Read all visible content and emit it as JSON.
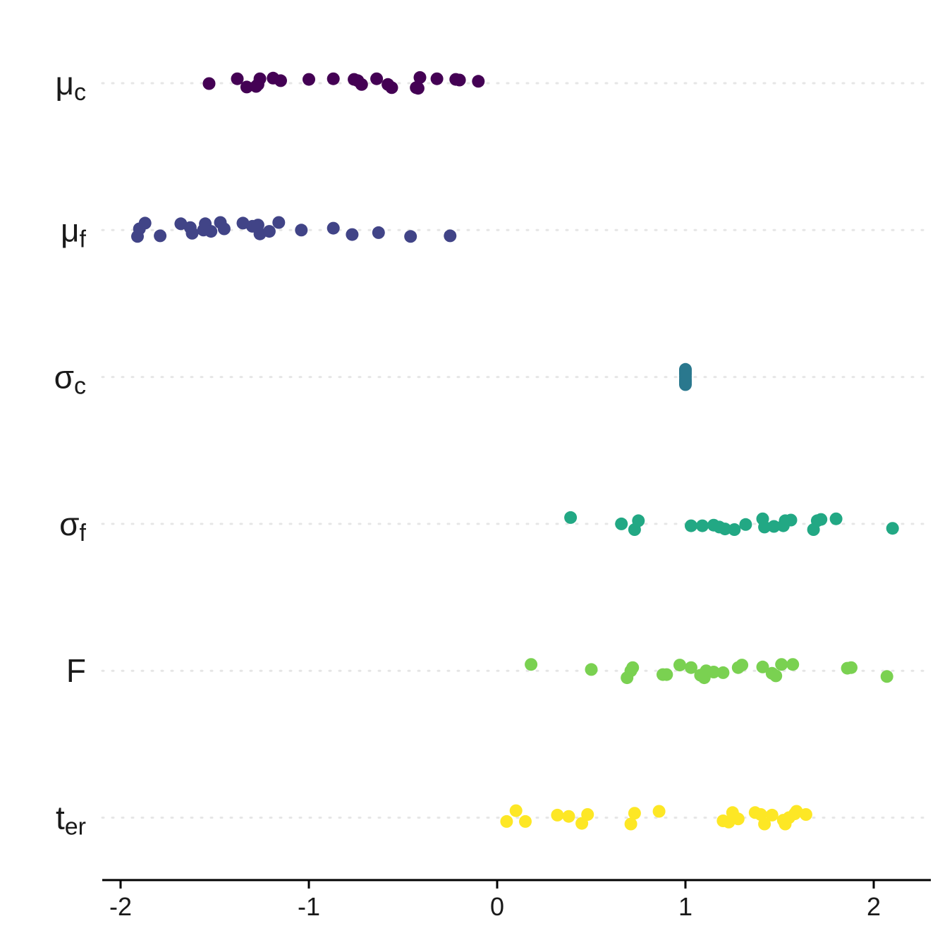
{
  "chart_data": {
    "type": "scatter",
    "title": "",
    "xlabel": "",
    "ylabel": "",
    "xlim": [
      -2.1,
      2.3
    ],
    "xticks": [
      -2,
      -1,
      0,
      1,
      2
    ],
    "xtick_labels": [
      "-2",
      "-1",
      "0",
      "1",
      "2"
    ],
    "grid": "horizontal dotted",
    "legend": "none",
    "categories": [
      {
        "base": "μ",
        "sub": "c"
      },
      {
        "base": "μ",
        "sub": "f"
      },
      {
        "base": "σ",
        "sub": "c"
      },
      {
        "base": "σ",
        "sub": "f"
      },
      {
        "base": "F",
        "sub": ""
      },
      {
        "base": "t",
        "sub": "er"
      }
    ],
    "series": [
      {
        "color": "#440154",
        "points": [
          [
            -1.53,
            0.003
          ],
          [
            -1.33,
            0.03
          ],
          [
            -1.38,
            -0.035
          ],
          [
            -1.28,
            0.025
          ],
          [
            -1.27,
            0.01
          ],
          [
            -1.26,
            -0.035
          ],
          [
            -1.19,
            -0.04
          ],
          [
            -1.15,
            -0.02
          ],
          [
            -1.0,
            -0.03
          ],
          [
            -0.87,
            -0.035
          ],
          [
            -0.76,
            -0.03
          ],
          [
            -0.74,
            -0.02
          ],
          [
            -0.72,
            0.01
          ],
          [
            -0.64,
            -0.035
          ],
          [
            -0.58,
            0.01
          ],
          [
            -0.56,
            0.035
          ],
          [
            -0.43,
            0.035
          ],
          [
            -0.42,
            0.04
          ],
          [
            -0.41,
            -0.045
          ],
          [
            -0.32,
            -0.035
          ],
          [
            -0.22,
            -0.03
          ],
          [
            -0.2,
            -0.025
          ],
          [
            -0.1,
            -0.015
          ]
        ]
      },
      {
        "color": "#414487",
        "points": [
          [
            -1.91,
            0.05
          ],
          [
            -1.9,
            -0.01
          ],
          [
            -1.87,
            -0.055
          ],
          [
            -1.79,
            0.045
          ],
          [
            -1.68,
            -0.05
          ],
          [
            -1.63,
            -0.02
          ],
          [
            -1.62,
            0.025
          ],
          [
            -1.56,
            0.0
          ],
          [
            -1.55,
            -0.05
          ],
          [
            -1.52,
            0.01
          ],
          [
            -1.47,
            -0.06
          ],
          [
            -1.45,
            -0.01
          ],
          [
            -1.35,
            -0.055
          ],
          [
            -1.3,
            -0.03
          ],
          [
            -1.27,
            -0.04
          ],
          [
            -1.26,
            0.03
          ],
          [
            -1.21,
            0.01
          ],
          [
            -1.16,
            -0.06
          ],
          [
            -1.04,
            0.0
          ],
          [
            -0.87,
            -0.015
          ],
          [
            -0.77,
            0.035
          ],
          [
            -0.63,
            0.02
          ],
          [
            -0.46,
            0.05
          ],
          [
            -0.25,
            0.045
          ]
        ]
      },
      {
        "color": "#2a788e",
        "points": [
          [
            1.0,
            0.06
          ],
          [
            1.0,
            0.04
          ],
          [
            1.0,
            0.02
          ],
          [
            1.0,
            0.0
          ],
          [
            1.0,
            -0.02
          ],
          [
            1.0,
            -0.04
          ],
          [
            1.0,
            -0.06
          ],
          [
            1.0,
            0.03
          ],
          [
            1.0,
            -0.03
          ],
          [
            1.0,
            0.05
          ],
          [
            1.0,
            -0.05
          ]
        ]
      },
      {
        "color": "#22a884",
        "points": [
          [
            0.39,
            -0.05
          ],
          [
            0.66,
            0.0
          ],
          [
            0.73,
            0.045
          ],
          [
            0.75,
            -0.025
          ],
          [
            1.03,
            0.015
          ],
          [
            1.09,
            0.015
          ],
          [
            1.15,
            0.01
          ],
          [
            1.18,
            0.025
          ],
          [
            1.21,
            0.04
          ],
          [
            1.26,
            0.045
          ],
          [
            1.32,
            0.005
          ],
          [
            1.41,
            -0.04
          ],
          [
            1.42,
            0.025
          ],
          [
            1.47,
            0.02
          ],
          [
            1.52,
            0.015
          ],
          [
            1.53,
            -0.025
          ],
          [
            1.56,
            -0.03
          ],
          [
            1.68,
            0.045
          ],
          [
            1.7,
            -0.025
          ],
          [
            1.72,
            -0.035
          ],
          [
            1.8,
            -0.04
          ],
          [
            2.1,
            0.035
          ]
        ]
      },
      {
        "color": "#7ad151",
        "points": [
          [
            0.18,
            -0.05
          ],
          [
            0.5,
            -0.01
          ],
          [
            0.69,
            0.055
          ],
          [
            0.71,
            0.0
          ],
          [
            0.72,
            -0.025
          ],
          [
            0.88,
            0.03
          ],
          [
            0.9,
            0.03
          ],
          [
            0.97,
            -0.045
          ],
          [
            1.03,
            -0.025
          ],
          [
            1.08,
            0.035
          ],
          [
            1.1,
            0.055
          ],
          [
            1.11,
            0.0
          ],
          [
            1.15,
            0.01
          ],
          [
            1.2,
            0.015
          ],
          [
            1.28,
            -0.025
          ],
          [
            1.3,
            -0.045
          ],
          [
            1.41,
            -0.03
          ],
          [
            1.46,
            0.02
          ],
          [
            1.48,
            0.04
          ],
          [
            1.51,
            -0.05
          ],
          [
            1.57,
            -0.05
          ],
          [
            1.86,
            -0.02
          ],
          [
            1.88,
            -0.025
          ],
          [
            2.07,
            0.045
          ]
        ]
      },
      {
        "color": "#fde725",
        "points": [
          [
            0.05,
            0.03
          ],
          [
            0.1,
            -0.055
          ],
          [
            0.15,
            0.03
          ],
          [
            0.32,
            -0.02
          ],
          [
            0.38,
            -0.01
          ],
          [
            0.45,
            0.045
          ],
          [
            0.48,
            -0.025
          ],
          [
            0.71,
            0.05
          ],
          [
            0.73,
            -0.035
          ],
          [
            0.86,
            -0.05
          ],
          [
            1.2,
            0.025
          ],
          [
            1.23,
            0.035
          ],
          [
            1.25,
            -0.04
          ],
          [
            1.28,
            0.01
          ],
          [
            1.37,
            -0.04
          ],
          [
            1.4,
            -0.025
          ],
          [
            1.42,
            0.05
          ],
          [
            1.46,
            -0.02
          ],
          [
            1.52,
            0.02
          ],
          [
            1.53,
            0.05
          ],
          [
            1.55,
            0.0
          ],
          [
            1.58,
            -0.03
          ],
          [
            1.59,
            -0.05
          ],
          [
            1.64,
            -0.025
          ]
        ]
      }
    ]
  }
}
